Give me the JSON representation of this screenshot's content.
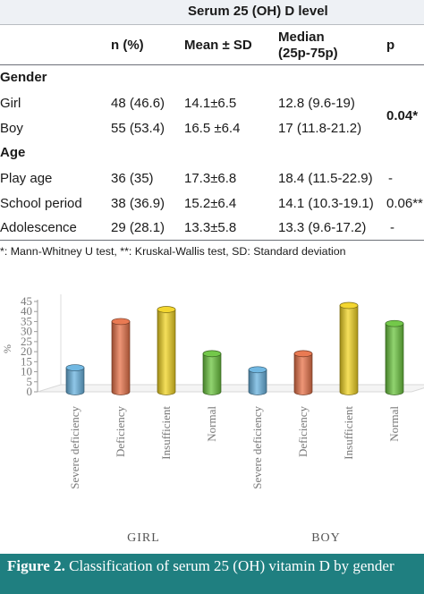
{
  "table": {
    "super_header": "Serum 25 (OH) D level",
    "columns": [
      "n (%)",
      "Mean ± SD",
      "Median",
      "(25p-75p)",
      "p"
    ],
    "sections": [
      {
        "label": "Gender",
        "rows": [
          {
            "label": "Girl",
            "n": "48 (46.6)",
            "mean": "14.1±6.5",
            "median": "12.8 (9.6-19)",
            "p": ""
          },
          {
            "label": "Boy",
            "n": "55 (53.4)",
            "mean": "16.5 ±6.4",
            "median": "17 (11.8-21.2)",
            "p": ""
          }
        ],
        "merged_p": "0.04*"
      },
      {
        "label": "Age",
        "rows": [
          {
            "label": "Play age",
            "n": "36 (35)",
            "mean": "17.3±6.8",
            "median": "18.4 (11.5-22.9)",
            "p": "-"
          },
          {
            "label": "School period",
            "n": "38 (36.9)",
            "mean": "15.2±6.4",
            "median": "14.1 (10.3-19.1)",
            "p": "0.06**"
          },
          {
            "label": "Adolescence",
            "n": "29 (28.1)",
            "mean": "13.3±5.8",
            "median": "13.3 (9.6-17.2)",
            "p": "-"
          }
        ]
      }
    ],
    "footnote": "*: Mann-Whitney U test, **: Kruskal-Wallis test, SD: Standard deviation"
  },
  "chart_data": {
    "type": "bar",
    "ylabel": "%",
    "ylim": [
      0,
      45
    ],
    "yticks": [
      0,
      5,
      10,
      15,
      20,
      25,
      30,
      35,
      40,
      45
    ],
    "grid": false,
    "groups": [
      {
        "name": "GIRL",
        "bars": [
          {
            "category": "Severe deficiency",
            "value": 12,
            "color": "#6ab4e0"
          },
          {
            "category": "Deficiency",
            "value": 35,
            "color": "#e8734a"
          },
          {
            "category": "Insufficient",
            "value": 41,
            "color": "#f2d424"
          },
          {
            "category": "Normal",
            "value": 19,
            "color": "#6cc540"
          }
        ]
      },
      {
        "name": "BOY",
        "bars": [
          {
            "category": "Severe deficiency",
            "value": 11,
            "color": "#6ab4e0"
          },
          {
            "category": "Deficiency",
            "value": 19,
            "color": "#e8734a"
          },
          {
            "category": "Insufficient",
            "value": 43,
            "color": "#f2d424"
          },
          {
            "category": "Normal",
            "value": 34,
            "color": "#6cc540"
          }
        ]
      }
    ]
  },
  "caption": {
    "label": "Figure 2.",
    "text": " Classification of serum 25 (OH) vitamin D by gender"
  }
}
